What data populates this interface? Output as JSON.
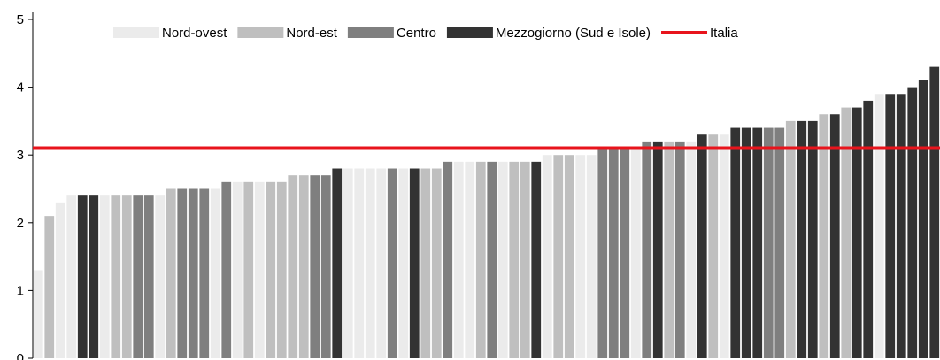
{
  "chart_data": {
    "type": "bar",
    "title": "",
    "xlabel": "",
    "ylabel": "",
    "ylim": [
      0,
      5
    ],
    "yticks": [
      0,
      1,
      2,
      3,
      4,
      5
    ],
    "grid": false,
    "legend_position": "top",
    "reference_line": {
      "name": "Italia",
      "value": 3.1,
      "color": "#e8141c"
    },
    "series": [
      {
        "name": "Nord-ovest",
        "color": "#ebebeb"
      },
      {
        "name": "Nord-est",
        "color": "#bfbfbf"
      },
      {
        "name": "Centro",
        "color": "#7f7f7f"
      },
      {
        "name": "Mezzogiorno (Sud e Isole)",
        "color": "#333333"
      }
    ],
    "values": [
      1.3,
      2.1,
      2.3,
      2.4,
      2.4,
      2.4,
      2.4,
      2.4,
      2.4,
      2.4,
      2.4,
      2.4,
      2.5,
      2.5,
      2.5,
      2.5,
      2.5,
      2.6,
      2.6,
      2.6,
      2.6,
      2.6,
      2.6,
      2.7,
      2.7,
      2.7,
      2.7,
      2.8,
      2.8,
      2.8,
      2.8,
      2.8,
      2.8,
      2.8,
      2.8,
      2.8,
      2.8,
      2.9,
      2.9,
      2.9,
      2.9,
      2.9,
      2.9,
      2.9,
      2.9,
      2.9,
      3.0,
      3.0,
      3.0,
      3.0,
      3.0,
      3.1,
      3.1,
      3.1,
      3.1,
      3.2,
      3.2,
      3.2,
      3.2,
      3.2,
      3.3,
      3.3,
      3.3,
      3.4,
      3.4,
      3.4,
      3.4,
      3.4,
      3.5,
      3.5,
      3.5,
      3.6,
      3.6,
      3.7,
      3.7,
      3.8,
      3.9,
      3.9,
      3.9,
      4.0,
      4.1,
      4.3
    ],
    "groups": [
      0,
      1,
      0,
      0,
      3,
      3,
      0,
      1,
      1,
      2,
      2,
      0,
      1,
      2,
      2,
      2,
      0,
      2,
      0,
      1,
      0,
      1,
      1,
      1,
      1,
      2,
      2,
      3,
      0,
      0,
      0,
      0,
      2,
      0,
      3,
      1,
      1,
      2,
      0,
      0,
      1,
      2,
      0,
      1,
      1,
      3,
      0,
      1,
      1,
      0,
      0,
      2,
      2,
      2,
      0,
      2,
      3,
      1,
      2,
      0,
      3,
      1,
      0,
      3,
      3,
      3,
      2,
      2,
      1,
      3,
      3,
      1,
      3,
      1,
      3,
      3,
      0,
      3,
      3,
      3,
      3,
      3
    ]
  }
}
